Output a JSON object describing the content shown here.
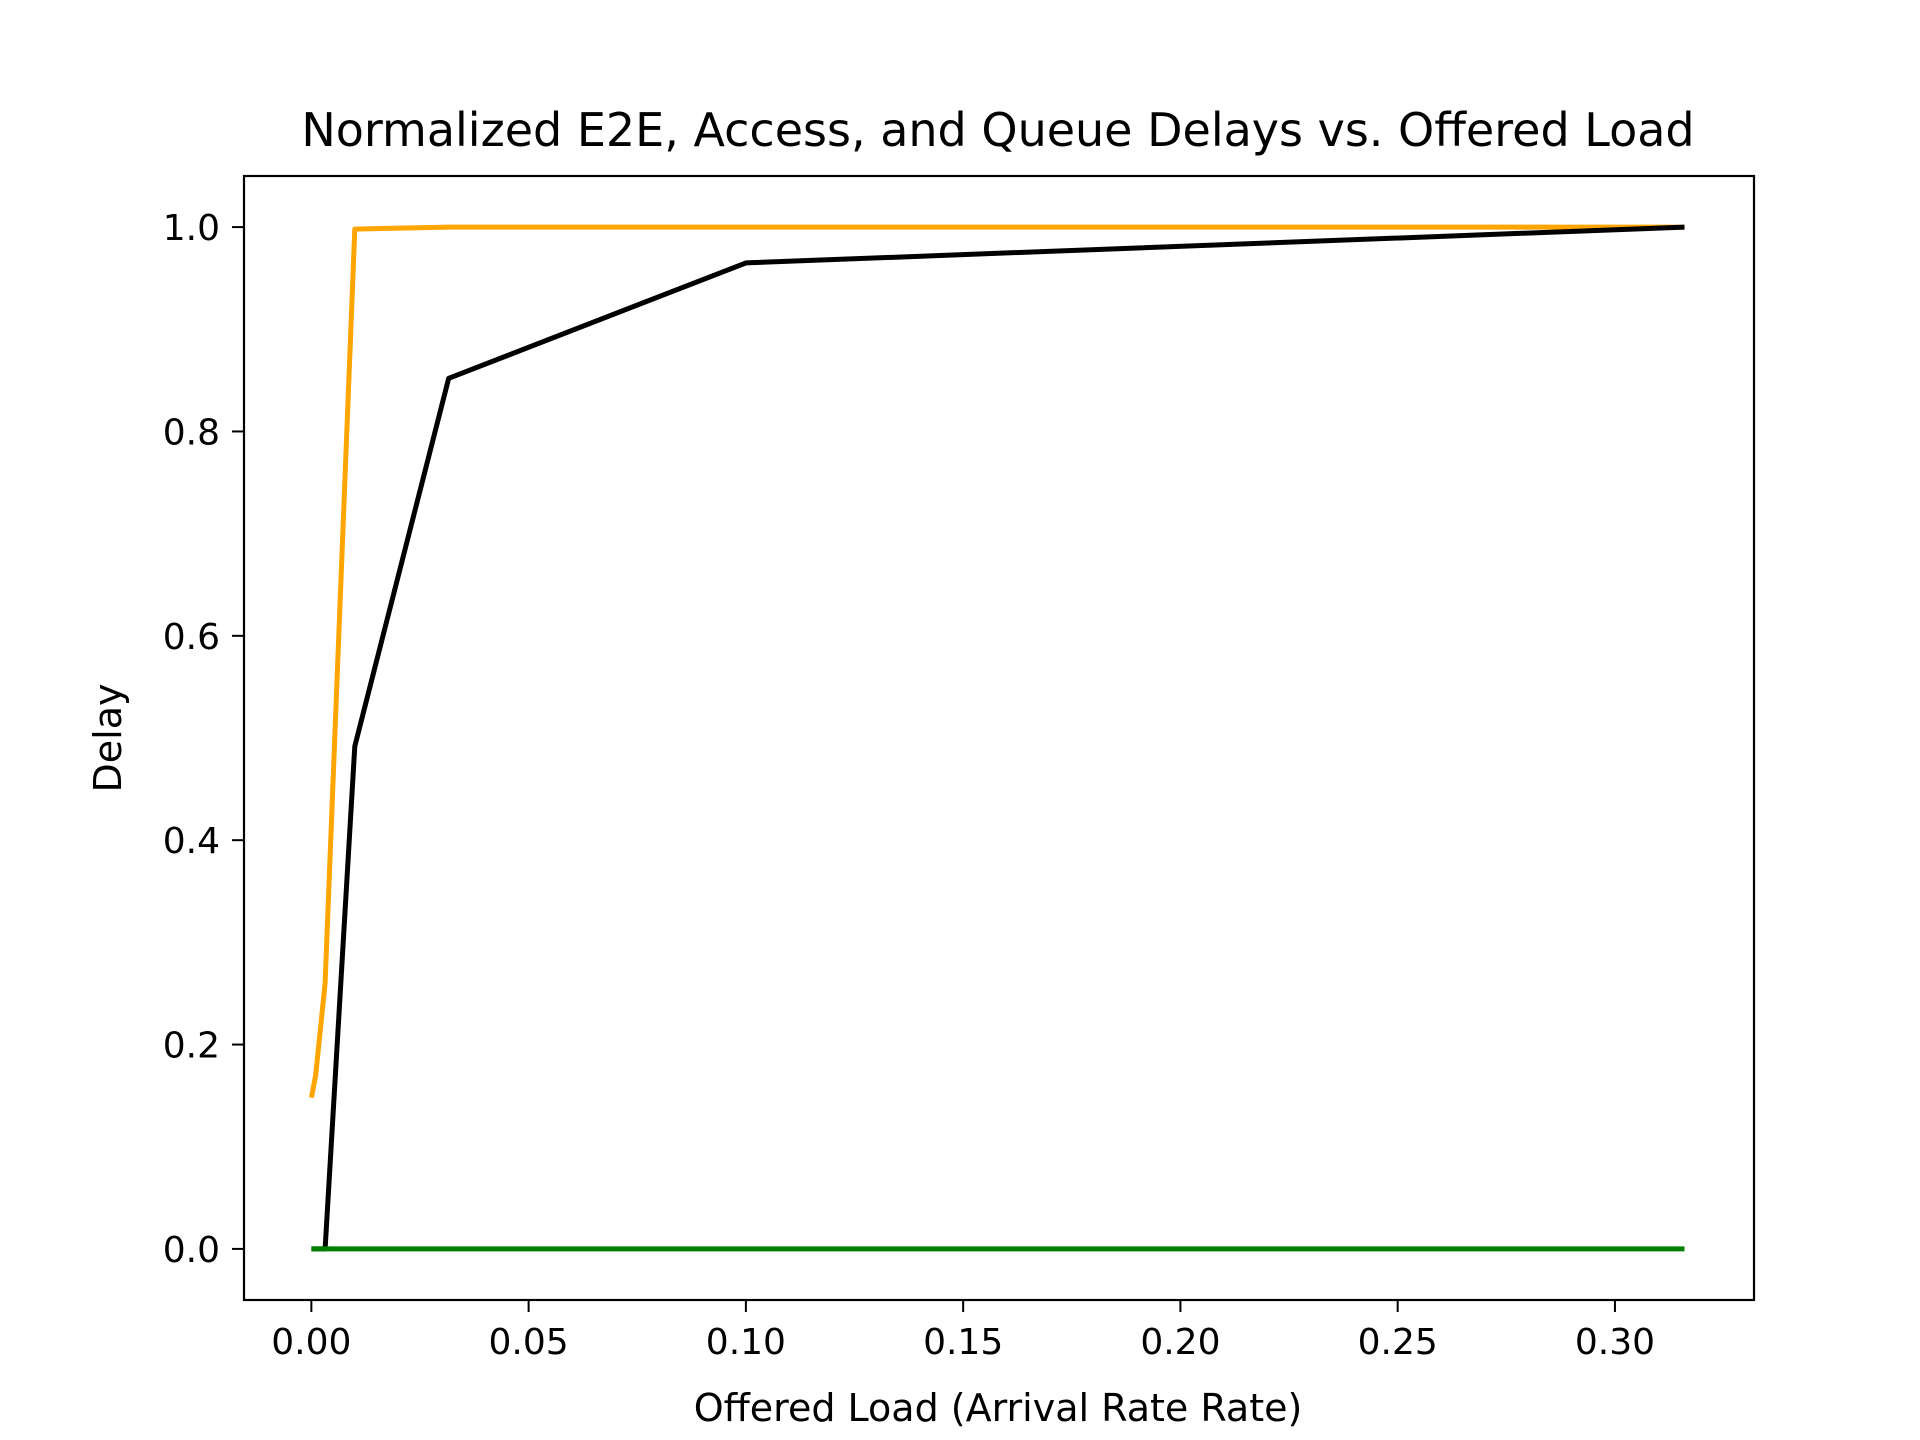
{
  "chart_data": {
    "type": "line",
    "title": "Normalized E2E, Access, and Queue Delays vs. Offered Load",
    "xlabel": "Offered Load (Arrival Rate Rate)",
    "ylabel": "Delay",
    "xlim": [
      -0.0155,
      0.332
    ],
    "ylim": [
      -0.05,
      1.05
    ],
    "xticks": [
      0.0,
      0.05,
      0.1,
      0.15,
      0.2,
      0.25,
      0.3
    ],
    "xtick_labels": [
      "0.00",
      "0.05",
      "0.10",
      "0.15",
      "0.20",
      "0.25",
      "0.30"
    ],
    "yticks": [
      0.0,
      0.2,
      0.4,
      0.6,
      0.8,
      1.0
    ],
    "ytick_labels": [
      "0.0",
      "0.2",
      "0.4",
      "0.6",
      "0.8",
      "1.0"
    ],
    "grid": false,
    "legend": "none",
    "series": [
      {
        "color": "#FFA500",
        "x": [
          0.0,
          0.001,
          0.00316,
          0.01,
          0.0316,
          0.1,
          0.316
        ],
        "y": [
          0.148,
          0.17,
          0.26,
          0.998,
          1.0,
          1.0,
          1.0
        ]
      },
      {
        "color": "#000000",
        "x": [
          0.0,
          0.001,
          0.00316,
          0.01,
          0.0316,
          0.1,
          0.316
        ],
        "y": [
          0.0,
          0.0,
          0.0,
          0.492,
          0.852,
          0.965,
          1.0
        ]
      },
      {
        "color": "#008000",
        "x": [
          0.0,
          0.001,
          0.00316,
          0.01,
          0.0316,
          0.1,
          0.316
        ],
        "y": [
          0.0,
          0.0,
          0.0,
          0.0,
          0.0,
          0.0,
          0.0
        ]
      }
    ]
  }
}
